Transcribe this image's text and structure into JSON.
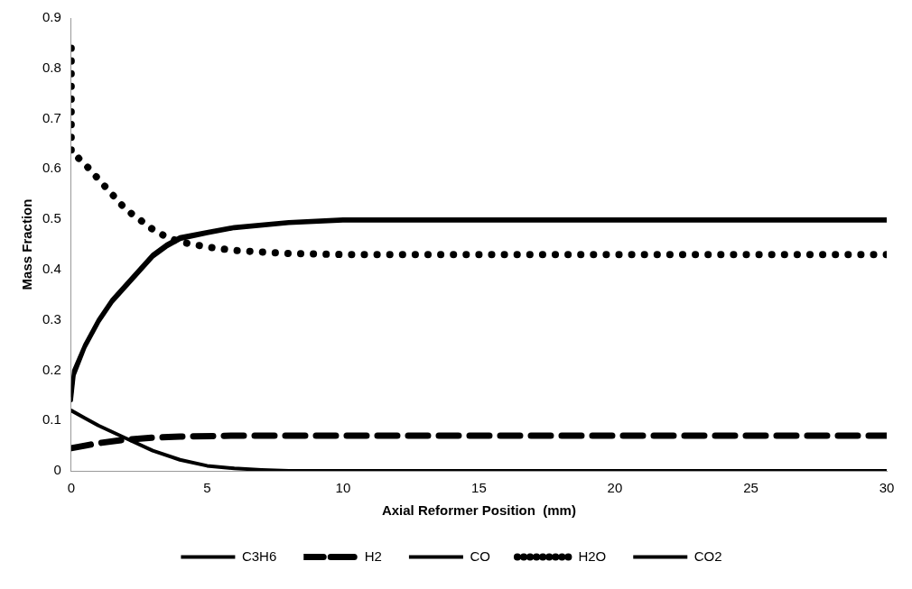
{
  "chart_data": {
    "type": "line",
    "xlabel": "Axial Reformer Position  (mm)",
    "ylabel": "Mass Fraction",
    "xlim": [
      0,
      30
    ],
    "xticks": [
      0,
      5,
      10,
      15,
      20,
      25,
      30
    ],
    "ylim": [
      0,
      0.9
    ],
    "yticks": [
      0,
      0.1,
      0.2,
      0.3,
      0.4,
      0.5,
      0.6,
      0.7,
      0.8,
      0.9
    ],
    "grid": false,
    "legend": "bottom",
    "marker": "none",
    "series": [
      {
        "name": "C3H6",
        "color": "#000000",
        "line_style": "solid",
        "x": [
          0,
          0.5,
          1,
          2,
          3,
          4,
          5,
          6,
          7,
          8,
          30
        ],
        "values": [
          0.12,
          0.105,
          0.09,
          0.065,
          0.04,
          0.022,
          0.01,
          0.005,
          0.002,
          0,
          0
        ]
      },
      {
        "name": "H2",
        "color": "#000000",
        "line_style": "dashed",
        "x": [
          0,
          0.5,
          1,
          2,
          3,
          4,
          6,
          30
        ],
        "values": [
          0.045,
          0.05,
          0.055,
          0.062,
          0.066,
          0.068,
          0.07,
          0.07
        ]
      },
      {
        "name": "CO",
        "color": "#000000",
        "line_style": "solid",
        "x": [
          0,
          0.1,
          0.5,
          1,
          1.5,
          2,
          2.5,
          3,
          3.5,
          4,
          5,
          6,
          8,
          10,
          30
        ],
        "values": [
          0.15,
          0.2,
          0.25,
          0.3,
          0.34,
          0.37,
          0.4,
          0.43,
          0.45,
          0.465,
          0.475,
          0.485,
          0.495,
          0.5,
          0.5
        ]
      },
      {
        "name": "H2O",
        "color": "#000000",
        "line_style": "dotted",
        "x": [
          0,
          0,
          0.2,
          0.5,
          1,
          1.5,
          2,
          2.5,
          3,
          3.5,
          4,
          5,
          6,
          8,
          10,
          30
        ],
        "values": [
          0.84,
          0.63,
          0.625,
          0.61,
          0.58,
          0.55,
          0.52,
          0.5,
          0.48,
          0.465,
          0.455,
          0.445,
          0.438,
          0.432,
          0.43,
          0.43
        ]
      },
      {
        "name": "CO2",
        "color": "#000000",
        "line_style": "solid",
        "x": [
          0,
          0.1,
          0.5,
          1,
          1.5,
          2,
          2.5,
          3,
          3.5,
          4,
          5,
          6,
          8,
          10,
          30
        ],
        "values": [
          0.14,
          0.19,
          0.245,
          0.295,
          0.335,
          0.365,
          0.395,
          0.425,
          0.445,
          0.46,
          0.472,
          0.482,
          0.492,
          0.497,
          0.497
        ]
      }
    ]
  }
}
